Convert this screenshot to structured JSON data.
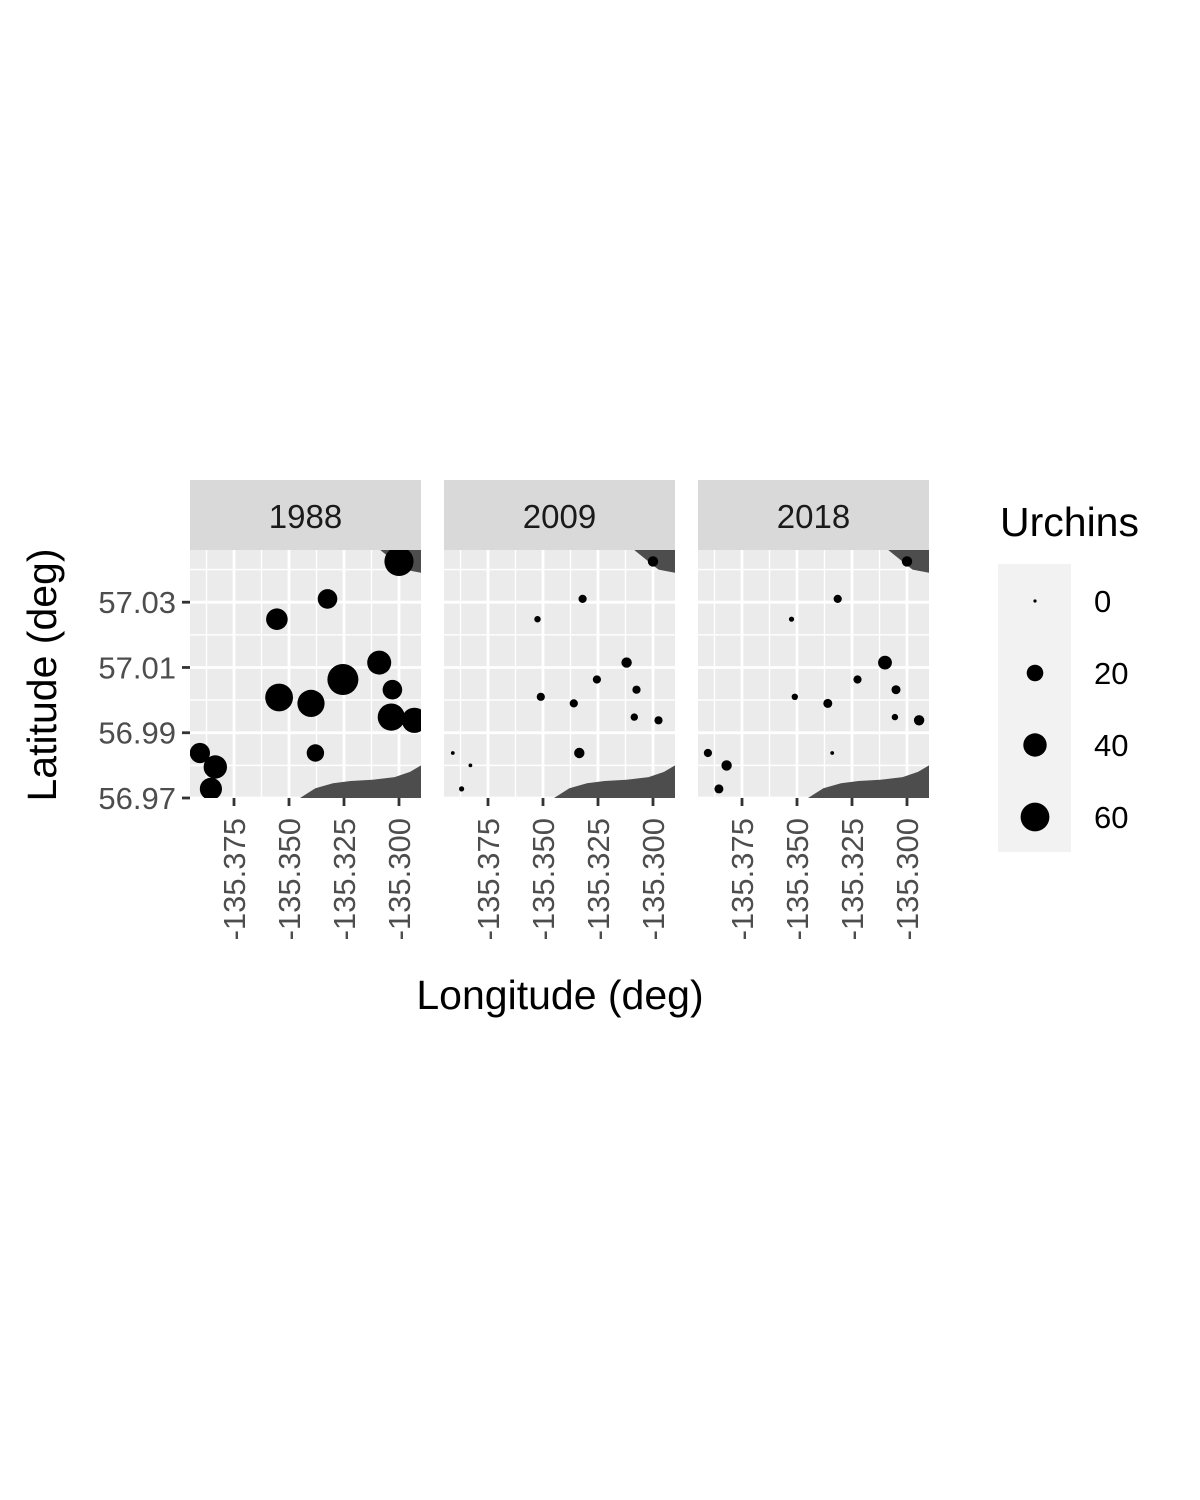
{
  "chart_data": {
    "type": "scatter",
    "subtype": "faceted bubble map",
    "xlabel": "Longitude (deg)",
    "ylabel": "Latitude (deg)",
    "xlim": [
      -135.395,
      -135.29
    ],
    "ylim": [
      56.97,
      57.046
    ],
    "x_ticks": [
      -135.375,
      -135.35,
      -135.325,
      -135.3
    ],
    "x_tick_labels": [
      "-135.375",
      "-135.350",
      "-135.325",
      "-135.300"
    ],
    "y_ticks": [
      56.97,
      56.99,
      57.01,
      57.03
    ],
    "y_tick_labels": [
      "56.97",
      "56.99",
      "57.01",
      "57.03"
    ],
    "grid": true,
    "panel_background": "#ebebeb",
    "strip_background": "#d9d9d9",
    "point_color": "#000000",
    "land_color": "#4d4d4d",
    "legend": {
      "title": "Urchins",
      "position": "right",
      "breaks": [
        0,
        20,
        40,
        60
      ],
      "labels": [
        "0",
        "20",
        "40",
        "60"
      ]
    },
    "size_range_max_value": 70,
    "land": [
      {
        "name": "north-shore",
        "points": [
          [
            -135.3085,
            57.046
          ],
          [
            -135.2975,
            57.04
          ],
          [
            -135.29,
            57.039
          ],
          [
            -135.29,
            57.046
          ]
        ]
      },
      {
        "name": "south-shore",
        "points": [
          [
            -135.345,
            56.97
          ],
          [
            -135.338,
            56.973
          ],
          [
            -135.33,
            56.9745
          ],
          [
            -135.322,
            56.9752
          ],
          [
            -135.312,
            56.9756
          ],
          [
            -135.302,
            56.9764
          ],
          [
            -135.295,
            56.978
          ],
          [
            -135.29,
            56.98
          ],
          [
            -135.29,
            56.97
          ]
        ]
      }
    ],
    "facets": [
      {
        "label": "1988",
        "points": [
          {
            "x": -135.3905,
            "y": 56.9838,
            "urchins": 30
          },
          {
            "x": -135.3835,
            "y": 56.9795,
            "urchins": 40
          },
          {
            "x": -135.3855,
            "y": 56.9728,
            "urchins": 36
          },
          {
            "x": -135.3555,
            "y": 57.0248,
            "urchins": 34
          },
          {
            "x": -135.3325,
            "y": 57.031,
            "urchins": 28
          },
          {
            "x": -135.3545,
            "y": 57.0008,
            "urchins": 56
          },
          {
            "x": -135.34,
            "y": 56.999,
            "urchins": 54
          },
          {
            "x": -135.3255,
            "y": 57.0063,
            "urchins": 70
          },
          {
            "x": -135.338,
            "y": 56.9838,
            "urchins": 22
          },
          {
            "x": -135.309,
            "y": 57.0115,
            "urchins": 42
          },
          {
            "x": -135.303,
            "y": 57.0032,
            "urchins": 28
          },
          {
            "x": -135.3035,
            "y": 56.9948,
            "urchins": 54
          },
          {
            "x": -135.293,
            "y": 56.9938,
            "urchins": 46
          },
          {
            "x": -135.3,
            "y": 57.0425,
            "urchins": 62
          }
        ]
      },
      {
        "label": "2009",
        "points": [
          {
            "x": -135.391,
            "y": 56.9838,
            "urchins": 1
          },
          {
            "x": -135.387,
            "y": 56.9728,
            "urchins": 2
          },
          {
            "x": -135.383,
            "y": 56.98,
            "urchins": 1
          },
          {
            "x": -135.3525,
            "y": 57.0248,
            "urchins": 3
          },
          {
            "x": -135.332,
            "y": 57.031,
            "urchins": 5
          },
          {
            "x": -135.351,
            "y": 57.001,
            "urchins": 5
          },
          {
            "x": -135.336,
            "y": 56.999,
            "urchins": 5
          },
          {
            "x": -135.3255,
            "y": 57.0063,
            "urchins": 5
          },
          {
            "x": -135.3335,
            "y": 56.9838,
            "urchins": 8
          },
          {
            "x": -135.312,
            "y": 57.0115,
            "urchins": 8
          },
          {
            "x": -135.3075,
            "y": 57.0032,
            "urchins": 5
          },
          {
            "x": -135.3085,
            "y": 56.9948,
            "urchins": 4
          },
          {
            "x": -135.2975,
            "y": 56.9938,
            "urchins": 5
          },
          {
            "x": -135.3,
            "y": 57.0425,
            "urchins": 8
          }
        ]
      },
      {
        "label": "2018",
        "points": [
          {
            "x": -135.3905,
            "y": 56.9838,
            "urchins": 5
          },
          {
            "x": -135.3855,
            "y": 56.9728,
            "urchins": 6
          },
          {
            "x": -135.382,
            "y": 56.98,
            "urchins": 8
          },
          {
            "x": -135.3525,
            "y": 57.0248,
            "urchins": 2
          },
          {
            "x": -135.3315,
            "y": 57.031,
            "urchins": 5
          },
          {
            "x": -135.351,
            "y": 57.001,
            "urchins": 3
          },
          {
            "x": -135.336,
            "y": 56.999,
            "urchins": 6
          },
          {
            "x": -135.334,
            "y": 56.9838,
            "urchins": 1
          },
          {
            "x": -135.3225,
            "y": 57.0063,
            "urchins": 5
          },
          {
            "x": -135.31,
            "y": 57.0115,
            "urchins": 14
          },
          {
            "x": -135.305,
            "y": 57.0032,
            "urchins": 6
          },
          {
            "x": -135.3055,
            "y": 56.9948,
            "urchins": 3
          },
          {
            "x": -135.2945,
            "y": 56.9938,
            "urchins": 8
          },
          {
            "x": -135.3,
            "y": 57.0425,
            "urchins": 8
          }
        ]
      }
    ]
  }
}
